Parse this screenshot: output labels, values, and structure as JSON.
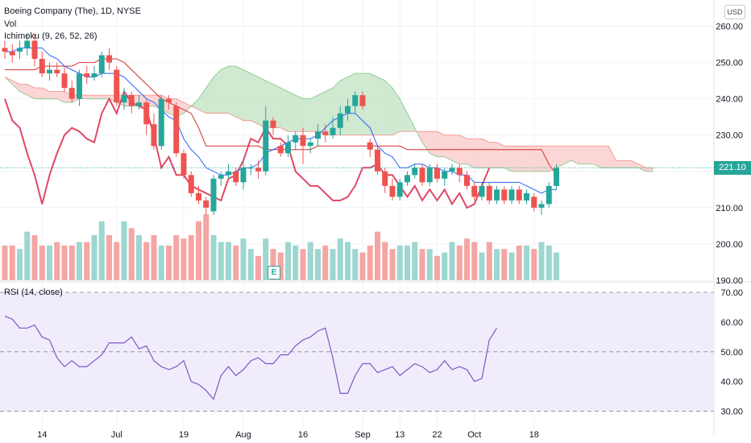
{
  "header": {
    "symbol_line": "Boeing Company (The), 1D, NYSE",
    "volume_label": "Vol",
    "ichimoku_label": "Ichimoku (9, 26, 52, 26)",
    "rsi_label": "RSI (14, close)",
    "currency_button": "USD",
    "earnings_marker": "E"
  },
  "colors": {
    "up": "#26a69a",
    "down": "#ef5350",
    "vol_up": "#9ed6d0",
    "vol_down": "#f4a6a4",
    "tenkan": "#2962ff",
    "kijun": "#d32f2f",
    "chikou": "#e04865",
    "cloud_bull": "#c8e6c9",
    "cloud_bear": "#fbd0cf",
    "rsi_line": "#7e57c2",
    "rsi_band": "#f1ecfb"
  },
  "chart_data": [
    {
      "type": "candlestick",
      "ylim": [
        190,
        265
      ],
      "y_ticks": [
        "260.00",
        "250.00",
        "240.00",
        "230.00",
        "220.00",
        "210.00",
        "200.00",
        "190.00"
      ],
      "y_tick_values": [
        260,
        250,
        240,
        230,
        220,
        210,
        200,
        190
      ],
      "x_ticks": [
        "14",
        "Jul",
        "19",
        "Aug",
        "16",
        "Sep",
        "13",
        "22",
        "Oct",
        "18"
      ],
      "x_tick_index": [
        5,
        15,
        24,
        32,
        40,
        48,
        53,
        58,
        63,
        71
      ],
      "last_price": "221.10",
      "candles": [
        [
          254,
          253,
          256,
          251
        ],
        [
          253,
          252,
          255,
          250
        ],
        [
          253,
          254,
          256,
          251
        ],
        [
          254,
          256,
          258,
          252
        ],
        [
          256,
          251,
          258,
          249
        ],
        [
          251,
          247,
          253,
          246
        ],
        [
          247,
          248,
          250,
          245
        ],
        [
          248,
          247,
          250,
          246
        ],
        [
          247,
          243,
          249,
          242
        ],
        [
          243,
          240,
          245,
          239
        ],
        [
          240,
          247,
          248,
          238
        ],
        [
          247,
          246,
          249,
          244
        ],
        [
          246,
          247,
          249,
          245
        ],
        [
          247,
          252,
          253,
          246
        ],
        [
          252,
          250,
          254,
          248
        ],
        [
          248,
          239,
          249,
          238
        ],
        [
          239,
          241,
          243,
          237
        ],
        [
          241,
          238,
          242,
          236
        ],
        [
          238,
          239,
          241,
          237
        ],
        [
          239,
          233,
          240,
          230
        ],
        [
          233,
          227,
          236,
          226
        ],
        [
          227,
          240,
          241,
          226
        ],
        [
          240,
          239,
          241,
          237
        ],
        [
          238,
          225,
          239,
          224
        ],
        [
          225,
          219,
          226,
          218
        ],
        [
          219,
          214,
          220,
          213
        ],
        [
          214,
          212,
          216,
          211
        ],
        [
          212,
          210,
          213,
          208
        ],
        [
          209,
          218,
          219,
          208
        ],
        [
          218,
          219,
          220,
          216
        ],
        [
          219,
          220,
          222,
          218
        ],
        [
          220,
          217,
          221,
          216
        ],
        [
          217,
          221,
          223,
          215
        ],
        [
          221,
          221,
          222,
          219
        ],
        [
          221,
          220,
          223,
          218
        ],
        [
          220,
          234,
          238,
          219
        ],
        [
          234,
          232,
          235,
          230
        ],
        [
          227,
          225,
          228,
          224
        ],
        [
          225,
          228,
          230,
          224
        ],
        [
          228,
          230,
          231,
          226
        ],
        [
          230,
          227,
          232,
          222
        ],
        [
          227,
          228,
          229,
          225
        ],
        [
          229,
          231,
          233,
          227
        ],
        [
          231,
          230,
          233,
          228
        ],
        [
          230,
          232,
          235,
          229
        ],
        [
          232,
          236,
          238,
          230
        ],
        [
          236,
          238,
          240,
          234
        ],
        [
          238,
          241,
          242,
          236
        ],
        [
          241,
          238,
          242,
          237
        ],
        [
          228,
          226,
          229,
          224
        ],
        [
          226,
          220,
          227,
          219
        ],
        [
          220,
          216,
          221,
          214
        ],
        [
          216,
          213,
          218,
          212
        ],
        [
          213,
          217,
          218,
          212
        ],
        [
          217,
          219,
          220,
          216
        ],
        [
          219,
          221,
          222,
          218
        ],
        [
          221,
          217,
          222,
          216
        ],
        [
          217,
          221,
          222,
          216
        ],
        [
          221,
          218,
          222,
          217
        ],
        [
          218,
          220,
          221,
          216
        ],
        [
          220,
          221,
          222,
          219
        ],
        [
          221,
          219,
          222,
          217
        ],
        [
          219,
          216,
          220,
          215
        ],
        [
          216,
          213,
          217,
          212
        ],
        [
          213,
          216,
          217,
          212
        ],
        [
          216,
          212,
          217,
          211
        ],
        [
          212,
          215,
          216,
          211
        ],
        [
          215,
          212,
          216,
          211
        ],
        [
          212,
          215,
          216,
          211
        ],
        [
          215,
          212,
          216,
          211
        ],
        [
          212,
          214,
          215,
          211
        ],
        [
          213,
          210,
          214,
          209
        ],
        [
          210,
          211,
          212,
          208
        ],
        [
          211,
          216,
          217,
          210
        ],
        [
          216,
          221,
          222,
          215
        ]
      ],
      "volume": [
        10,
        10,
        9,
        14,
        13,
        10,
        10,
        11,
        10,
        10,
        11,
        11,
        13,
        17,
        13,
        11,
        17,
        15,
        13,
        11,
        13,
        10,
        10,
        13,
        12,
        13,
        17,
        19,
        13,
        11,
        11,
        10,
        12,
        9,
        7,
        12,
        9,
        8,
        11,
        10,
        9,
        11,
        9,
        10,
        9,
        12,
        11,
        9,
        8,
        10,
        14,
        11,
        9,
        10,
        10,
        11,
        9,
        9,
        7,
        8,
        11,
        10,
        12,
        11,
        8,
        11,
        9,
        9,
        8,
        10,
        10,
        9,
        11,
        10,
        8
      ],
      "ichimoku": {
        "tenkan": [
          253,
          253,
          254,
          254,
          254,
          254,
          252,
          251,
          249,
          248,
          247,
          246,
          246,
          247,
          247,
          247,
          246,
          244,
          242,
          240,
          239,
          237,
          235,
          234,
          229,
          226,
          224,
          221,
          220,
          219,
          219,
          220,
          221,
          221,
          222,
          225,
          226,
          227,
          228,
          229,
          229,
          229,
          230,
          232,
          234,
          235,
          236,
          236,
          234,
          232,
          227,
          225,
          224,
          221,
          221,
          222,
          222,
          221,
          221,
          220,
          220,
          219,
          219,
          217,
          217,
          217,
          217,
          217,
          217,
          217,
          216,
          215,
          214,
          215,
          215
        ],
        "kijun": [
          248,
          248,
          248,
          248,
          248,
          249,
          249,
          249,
          249,
          249,
          250,
          250,
          250,
          251,
          251,
          251,
          250,
          248,
          246,
          244,
          242,
          240,
          239,
          238,
          237,
          236,
          232,
          227,
          227,
          227,
          227,
          227,
          227,
          227,
          227,
          226,
          226,
          226,
          226,
          226,
          226,
          226,
          227,
          227,
          227,
          227,
          227,
          227,
          227,
          227,
          227,
          227,
          227,
          227,
          226,
          226,
          226,
          226,
          226,
          226,
          226,
          226,
          226,
          226,
          226,
          226,
          226,
          226,
          226,
          226,
          226,
          226,
          226,
          222,
          219
        ],
        "chikou": [
          240,
          234,
          232,
          225,
          219,
          211,
          219,
          225,
          230,
          232,
          231,
          229,
          228,
          236,
          240,
          236,
          242,
          239,
          238,
          237,
          230,
          221,
          224,
          219,
          219,
          216,
          215,
          214,
          213,
          212,
          218,
          219,
          223,
          229,
          228,
          232,
          229,
          229,
          227,
          220,
          218,
          216,
          216,
          214,
          212,
          212,
          213,
          216,
          221,
          221,
          222,
          219,
          219,
          216,
          213,
          216,
          212,
          215,
          212,
          215,
          211,
          214,
          210,
          211,
          216,
          221
        ],
        "span_a": [
          246,
          244,
          242,
          241,
          240,
          240,
          240,
          240,
          239,
          239,
          240,
          240,
          240,
          240,
          240,
          239,
          238,
          238,
          238,
          238,
          238,
          237,
          236,
          235,
          236,
          238,
          240,
          243,
          246,
          248,
          249,
          249,
          248,
          247,
          246,
          245,
          244,
          243,
          242,
          241,
          240,
          240,
          241,
          242,
          243,
          245,
          246,
          247,
          247,
          247,
          246,
          245,
          243,
          240,
          236,
          232,
          228,
          225,
          224,
          224,
          223,
          222,
          222,
          221,
          221,
          221,
          221,
          221,
          220,
          220,
          220,
          220,
          220,
          220,
          221,
          222,
          223,
          222,
          222,
          222,
          221,
          221,
          221,
          221,
          221,
          221,
          220,
          220
        ],
        "span_b": [
          246,
          245,
          244,
          244,
          243,
          243,
          242,
          242,
          242,
          241,
          241,
          241,
          241,
          241,
          241,
          241,
          241,
          241,
          241,
          241,
          241,
          241,
          240,
          240,
          239,
          238,
          237,
          236,
          236,
          236,
          236,
          235,
          234,
          234,
          233,
          232,
          232,
          232,
          231,
          231,
          231,
          231,
          231,
          230,
          230,
          230,
          230,
          230,
          230,
          230,
          230,
          230,
          230,
          231,
          231,
          231,
          231,
          231,
          231,
          230,
          230,
          230,
          229,
          229,
          229,
          228,
          228,
          227,
          227,
          227,
          227,
          227,
          227,
          227,
          227,
          227,
          227,
          227,
          227,
          227,
          227,
          227,
          223,
          223,
          223,
          222,
          221,
          221
        ]
      }
    },
    {
      "type": "line",
      "title": "RSI (14, close)",
      "ylim": [
        22,
        73
      ],
      "y_ticks": [
        "70.00",
        "60.00",
        "50.00",
        "40.00",
        "30.00"
      ],
      "y_tick_values": [
        70,
        60,
        50,
        40,
        30
      ],
      "bands": [
        30,
        50,
        70
      ],
      "values": [
        62,
        61,
        58,
        58,
        59,
        55,
        54,
        48,
        45,
        47,
        45,
        45,
        47,
        49,
        53,
        53,
        53,
        55,
        51,
        52,
        47,
        45,
        44,
        45,
        47,
        40,
        39,
        37,
        34,
        42,
        45,
        42,
        44,
        47,
        48,
        46,
        46,
        49,
        49,
        52,
        54,
        55,
        57,
        58,
        48,
        36,
        36,
        42,
        46,
        46,
        43,
        44,
        45,
        42,
        44,
        46,
        45,
        43,
        44,
        47,
        44,
        45,
        44,
        40,
        41,
        54,
        58
      ]
    }
  ]
}
